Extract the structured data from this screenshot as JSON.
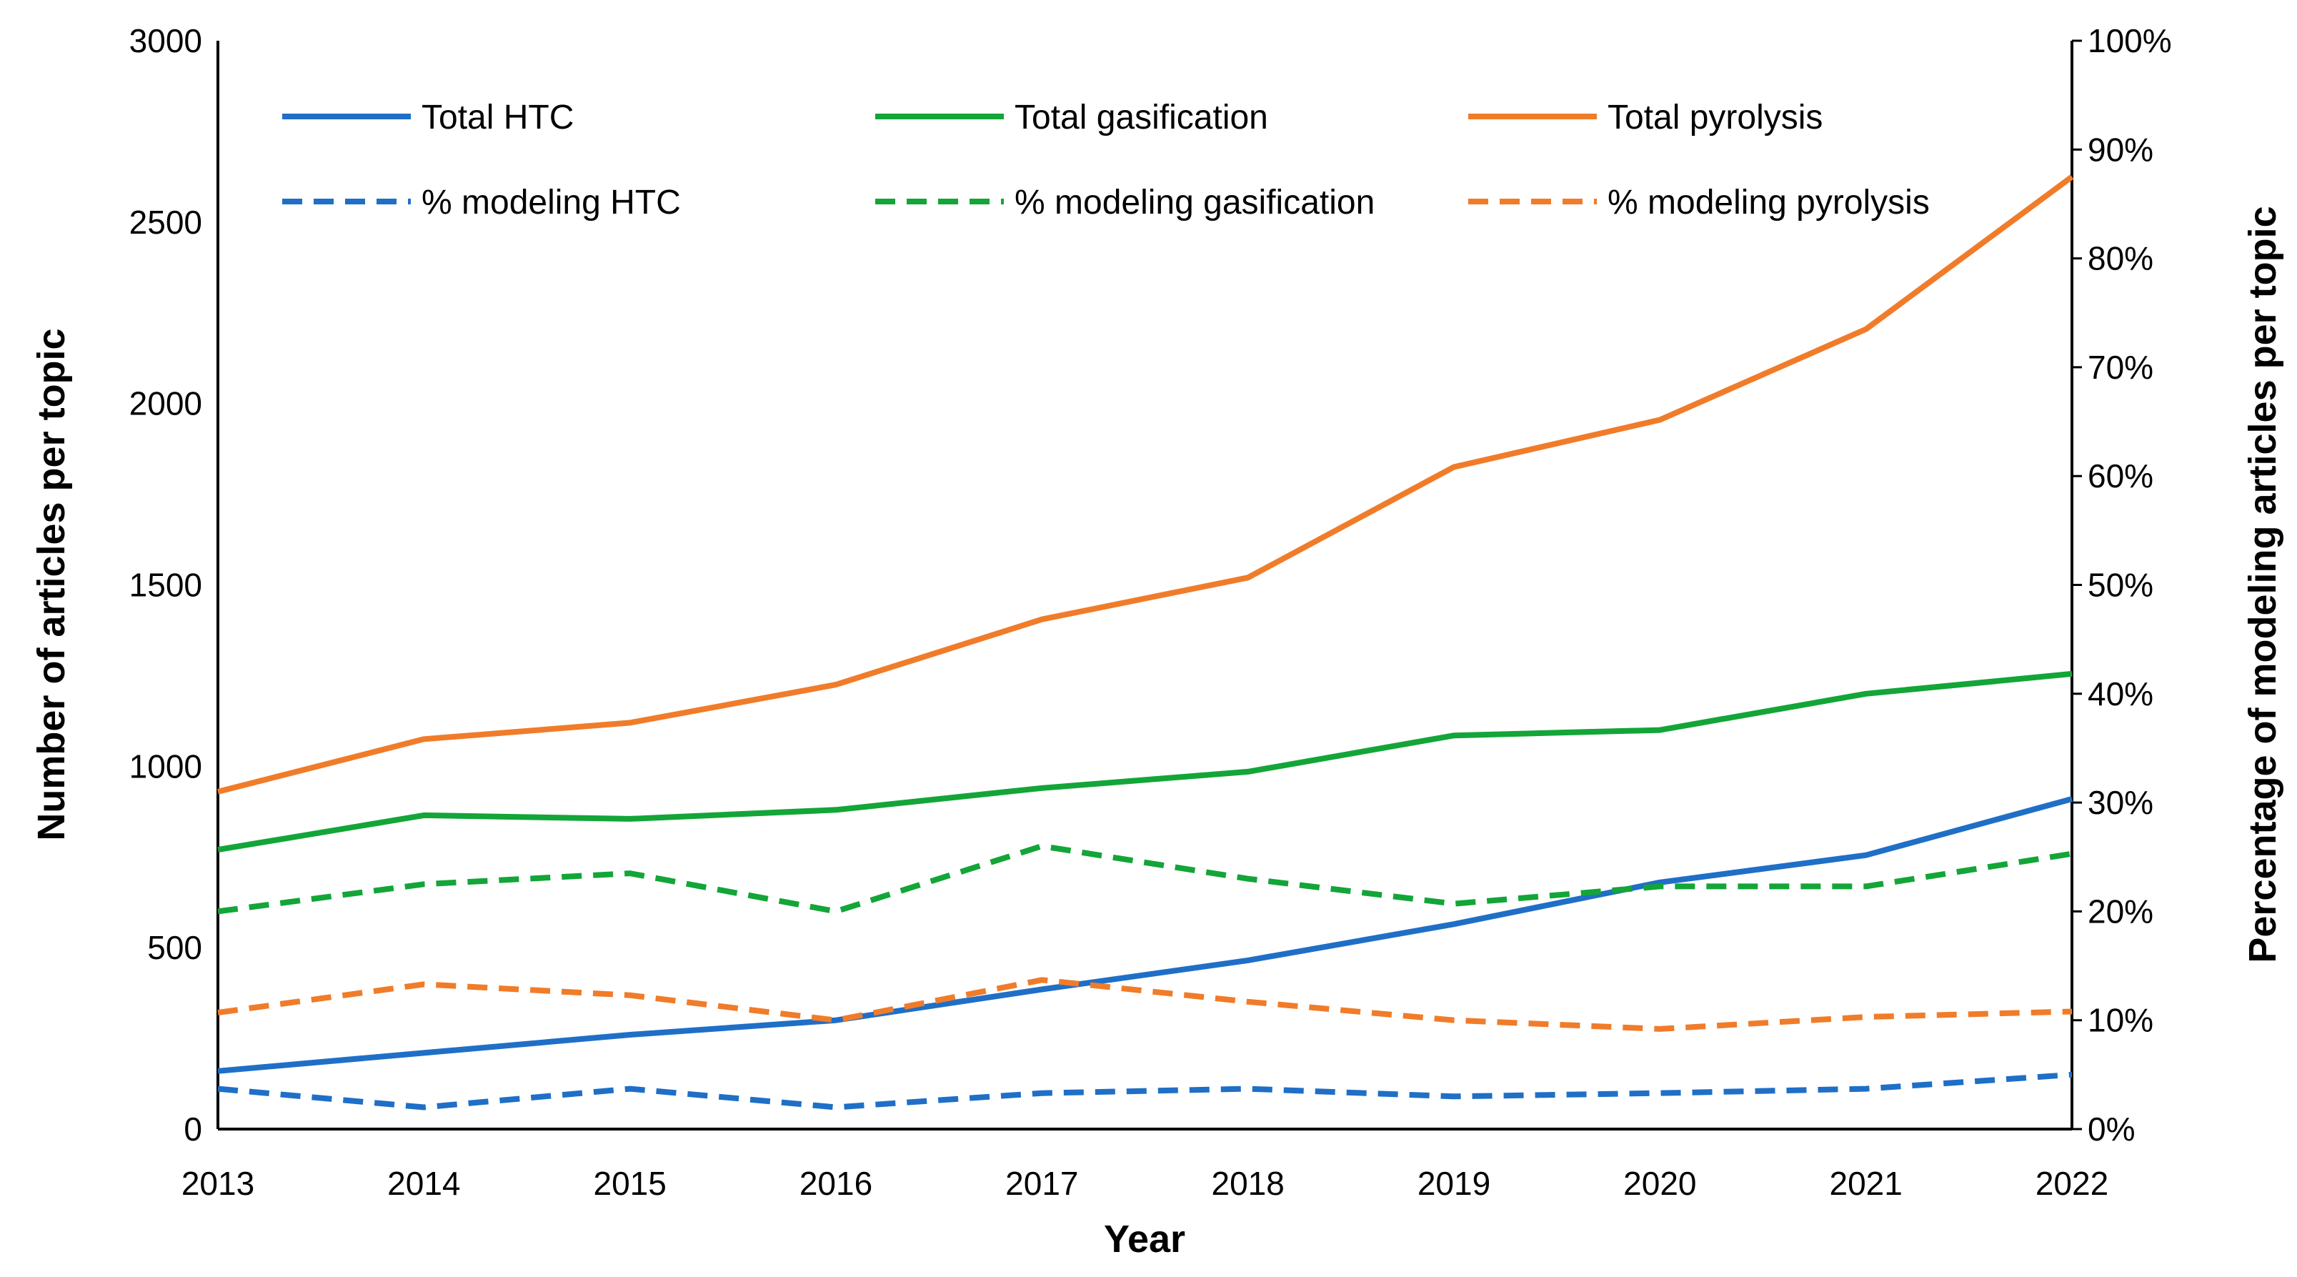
{
  "chart_data": {
    "type": "line",
    "title": "",
    "x": [
      2013,
      2014,
      2015,
      2016,
      2017,
      2018,
      2019,
      2020,
      2021,
      2022
    ],
    "xlabel": "Year",
    "ylabel": "Number of articles per topic",
    "y2label": "Percentage of modeling articles per topic",
    "ylim": [
      0,
      3000
    ],
    "y2lim": [
      0,
      100
    ],
    "y_ticks": [
      "0",
      "500",
      "1000",
      "1500",
      "2000",
      "2500",
      "3000"
    ],
    "y2_ticks": [
      "0%",
      "10%",
      "20%",
      "30%",
      "40%",
      "50%",
      "60%",
      "70%",
      "80%",
      "90%",
      "100%"
    ],
    "x_ticks": [
      "2013",
      "2014",
      "2015",
      "2016",
      "2017",
      "2018",
      "2019",
      "2020",
      "2021",
      "2022"
    ],
    "grid": false,
    "legend_position": "top",
    "series": [
      {
        "name": "Total HTC",
        "axis": "left",
        "style": "solid",
        "color": "#1f6fc7",
        "values": [
          160,
          210,
          260,
          300,
          385,
          465,
          565,
          680,
          755,
          910
        ]
      },
      {
        "name": "Total gasification",
        "axis": "left",
        "style": "solid",
        "color": "#13a538",
        "values": [
          770,
          865,
          855,
          880,
          940,
          985,
          1085,
          1100,
          1200,
          1255
        ]
      },
      {
        "name": "Total pyrolysis",
        "axis": "left",
        "style": "solid",
        "color": "#f07c2a",
        "values": [
          930,
          1075,
          1120,
          1225,
          1405,
          1520,
          1825,
          1955,
          2205,
          2625
        ]
      },
      {
        "name": "% modeling HTC",
        "axis": "right",
        "style": "dashed",
        "color": "#1f6fc7",
        "values": [
          3.7,
          2,
          3.7,
          2,
          3.3,
          3.7,
          3,
          3.3,
          3.7,
          5
        ]
      },
      {
        "name": "% modeling gasification",
        "axis": "right",
        "style": "dashed",
        "color": "#13a538",
        "values": [
          20,
          22.5,
          23.5,
          20,
          26,
          23,
          20.7,
          22.3,
          22.3,
          25.3
        ]
      },
      {
        "name": "% modeling pyrolysis",
        "axis": "right",
        "style": "dashed",
        "color": "#f07c2a",
        "values": [
          10.7,
          13.3,
          12.3,
          10,
          13.7,
          11.7,
          10,
          9.2,
          10.3,
          10.8
        ]
      }
    ]
  }
}
